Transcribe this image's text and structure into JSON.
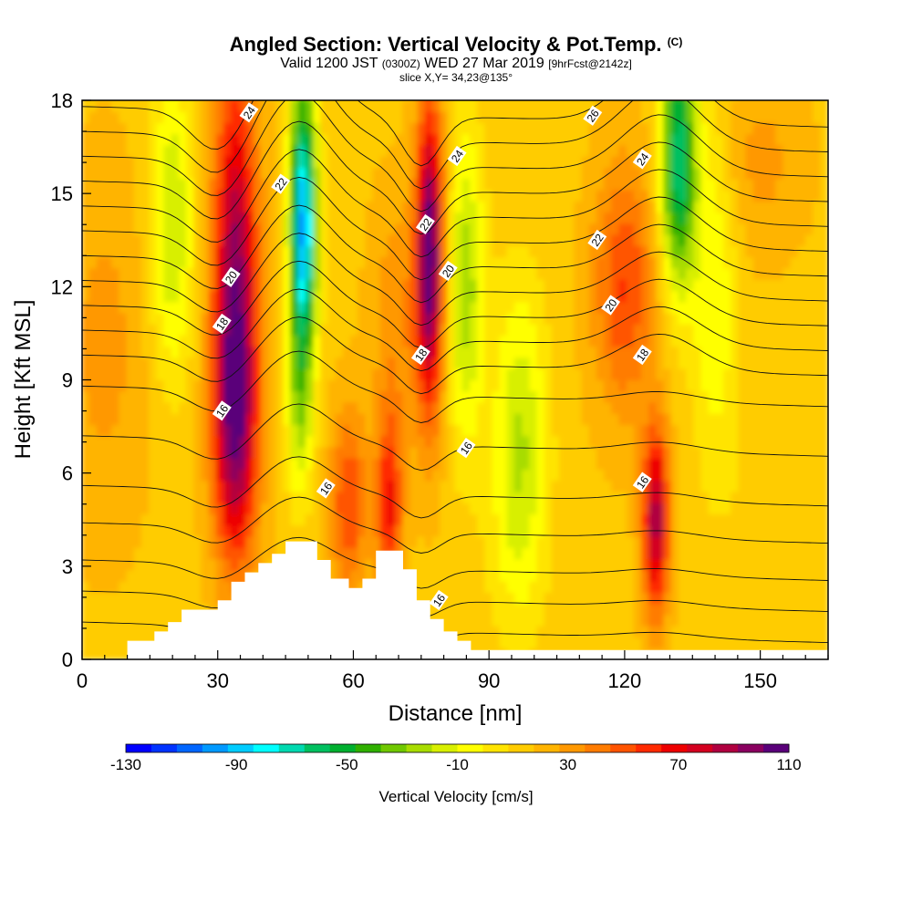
{
  "header": {
    "title": "Angled Section: Vertical Velocity & Pot.Temp.",
    "title_unit": "(C)",
    "valid_main": "Valid 1200 JST",
    "valid_utc": "(0300Z)",
    "valid_date": "WED 27 Mar 2019",
    "forecast": "[9hrFcst@2142z]",
    "slice": "slice X,Y= 34,23@135°"
  },
  "chart_data": {
    "type": "heatmap",
    "title": "Angled Section: Vertical Velocity & Pot.Temp.",
    "xlabel": "Distance [nm]",
    "ylabel": "Height [Kft MSL]",
    "xlim": [
      0,
      165
    ],
    "ylim": [
      0,
      18
    ],
    "x_ticks": [
      0,
      30,
      60,
      90,
      120,
      150
    ],
    "y_ticks": [
      0,
      3,
      6,
      9,
      12,
      15,
      18
    ],
    "colorbar": {
      "label": "Vertical Velocity [cm/s]",
      "ticks": [
        -130,
        -90,
        -50,
        -10,
        30,
        70,
        110
      ],
      "min": -130,
      "max": 110,
      "colors": [
        "#0000ff",
        "#0033ff",
        "#0066ff",
        "#0099ff",
        "#00ccff",
        "#00ffff",
        "#00d9b0",
        "#00c060",
        "#00b030",
        "#30b000",
        "#70c800",
        "#a8dc00",
        "#d8ef00",
        "#ffff00",
        "#ffe400",
        "#ffcc00",
        "#ffb400",
        "#ff9800",
        "#ff7c00",
        "#ff5400",
        "#ff2a00",
        "#ee0000",
        "#d40020",
        "#b00040",
        "#8a0060",
        "#5a007a"
      ]
    },
    "velocity_cells_cm_s": [
      {
        "x": 34,
        "y": 12,
        "sx": 5,
        "sy": 7,
        "v": 80
      },
      {
        "x": 34,
        "y": 7,
        "sx": 5,
        "sy": 4,
        "v": 45
      },
      {
        "x": 49,
        "y": 14,
        "sx": 3,
        "sy": 4.5,
        "v": -110
      },
      {
        "x": 48,
        "y": 8,
        "sx": 3,
        "sy": 3,
        "v": -30
      },
      {
        "x": 77,
        "y": 13,
        "sx": 3,
        "sy": 5,
        "v": 95
      },
      {
        "x": 68,
        "y": 5,
        "sx": 3,
        "sy": 3,
        "v": 50
      },
      {
        "x": 59,
        "y": 5,
        "sx": 4,
        "sy": 3,
        "v": 40
      },
      {
        "x": 85,
        "y": 12,
        "sx": 4,
        "sy": 5,
        "v": -40
      },
      {
        "x": 97,
        "y": 7,
        "sx": 6,
        "sy": 5,
        "v": -35
      },
      {
        "x": 20,
        "y": 14,
        "sx": 5,
        "sy": 5,
        "v": -35
      },
      {
        "x": 120,
        "y": 12,
        "sx": 7,
        "sy": 4,
        "v": 40
      },
      {
        "x": 127,
        "y": 4.5,
        "sx": 3,
        "sy": 3,
        "v": 75
      },
      {
        "x": 132,
        "y": 16,
        "sx": 4,
        "sy": 4,
        "v": -80
      },
      {
        "x": 140,
        "y": 12,
        "sx": 5,
        "sy": 6,
        "v": -25
      },
      {
        "x": 150,
        "y": 16,
        "sx": 10,
        "sy": 3,
        "v": 15
      },
      {
        "x": 5,
        "y": 10,
        "sx": 10,
        "sy": 6,
        "v": 15
      },
      {
        "x": 150,
        "y": 5,
        "sx": 8,
        "sy": 3,
        "v": -5
      },
      {
        "x": 95,
        "y": 3,
        "sx": 8,
        "sy": 3,
        "v": -5
      },
      {
        "x": 70,
        "y": 11,
        "sx": 6,
        "sy": 4,
        "v": 20
      }
    ],
    "terrain_steps": [
      [
        0,
        0
      ],
      [
        10,
        0.6
      ],
      [
        16,
        0.9
      ],
      [
        19,
        1.2
      ],
      [
        22,
        1.6
      ],
      [
        30,
        1.9
      ],
      [
        33,
        2.5
      ],
      [
        36,
        2.8
      ],
      [
        39,
        3.1
      ],
      [
        42,
        3.4
      ],
      [
        45,
        3.8
      ],
      [
        52,
        3.2
      ],
      [
        55,
        2.6
      ],
      [
        59,
        2.3
      ],
      [
        62,
        2.6
      ],
      [
        65,
        3.5
      ],
      [
        71,
        2.9
      ],
      [
        74,
        1.9
      ],
      [
        77,
        1.3
      ],
      [
        80,
        0.9
      ],
      [
        83,
        0.6
      ],
      [
        86,
        0.3
      ],
      [
        165,
        0.3
      ]
    ],
    "isentrope_labels": [
      {
        "text": "24",
        "x": 37,
        "y": 17.6
      },
      {
        "text": "22",
        "x": 44,
        "y": 15.3
      },
      {
        "text": "20",
        "x": 33,
        "y": 12.3
      },
      {
        "text": "18",
        "x": 31,
        "y": 10.8
      },
      {
        "text": "16",
        "x": 31,
        "y": 8.0
      },
      {
        "text": "16",
        "x": 54,
        "y": 5.5
      },
      {
        "text": "24",
        "x": 83,
        "y": 16.2
      },
      {
        "text": "22",
        "x": 76,
        "y": 14.0
      },
      {
        "text": "20",
        "x": 81,
        "y": 12.5
      },
      {
        "text": "18",
        "x": 75,
        "y": 9.8
      },
      {
        "text": "16",
        "x": 85,
        "y": 6.8
      },
      {
        "text": "16",
        "x": 79,
        "y": 1.9
      },
      {
        "text": "26",
        "x": 113,
        "y": 17.5
      },
      {
        "text": "24",
        "x": 124,
        "y": 16.1
      },
      {
        "text": "22",
        "x": 114,
        "y": 13.5
      },
      {
        "text": "20",
        "x": 117,
        "y": 11.4
      },
      {
        "text": "18",
        "x": 124,
        "y": 9.8
      },
      {
        "text": "16",
        "x": 124,
        "y": 5.7
      }
    ]
  }
}
